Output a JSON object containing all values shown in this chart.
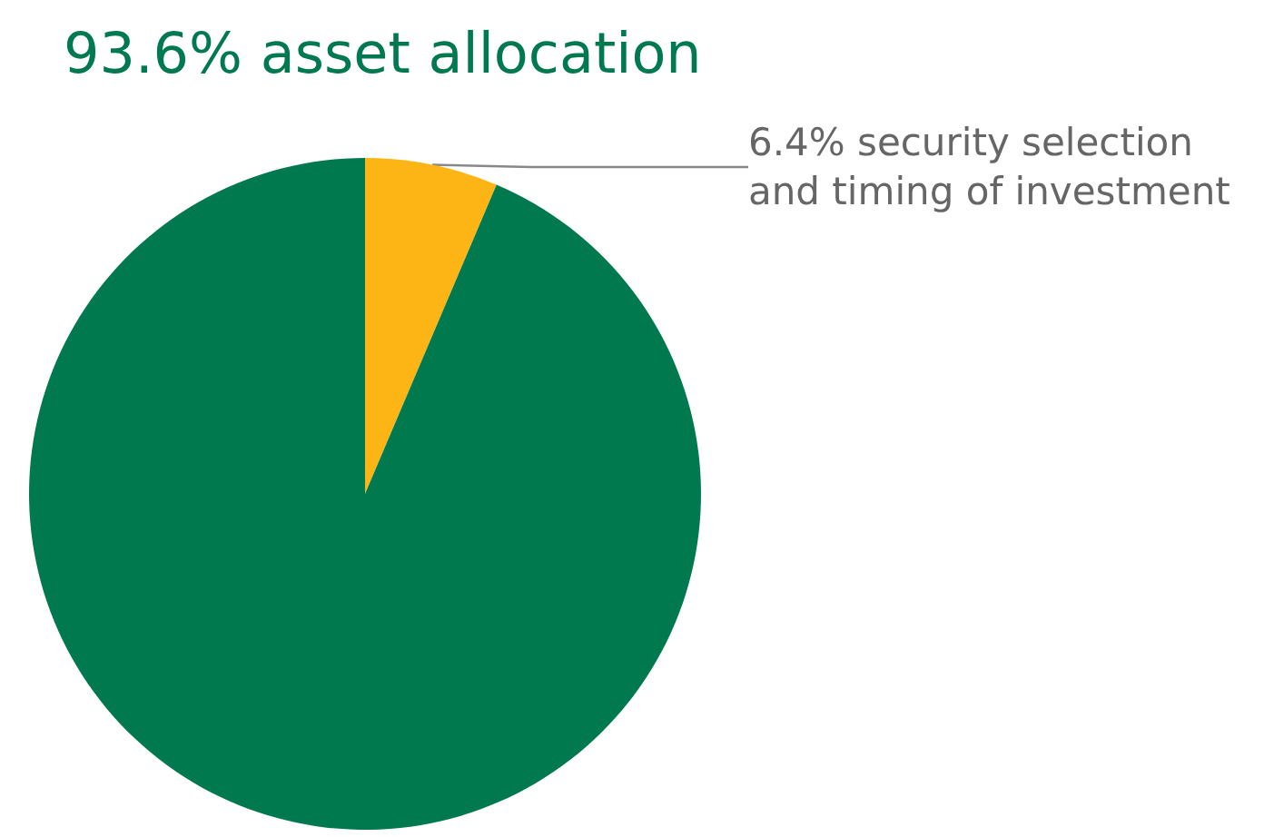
{
  "chart_data": {
    "type": "pie",
    "categories": [
      "security selection and timing of investment",
      "asset allocation"
    ],
    "values": [
      6.4,
      93.6
    ],
    "value_labels": [
      "6.4%",
      "93.6%"
    ],
    "colors": [
      "#fdb515",
      "#00794f"
    ]
  }
}
